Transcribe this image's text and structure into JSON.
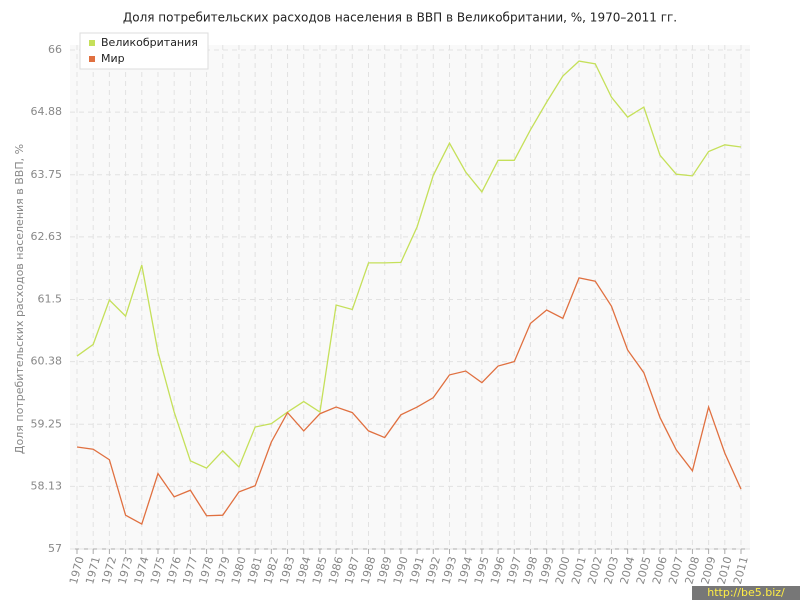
{
  "chart_data": {
    "type": "line",
    "title": "Доля потребительских расходов населения в ВВП в Великобритании, %, 1970–2011 гг.",
    "y_label": "Доля потребительских расходов населения в ВВП, %",
    "categories": [
      "1970",
      "1971",
      "1972",
      "1973",
      "1974",
      "1975",
      "1976",
      "1977",
      "1978",
      "1979",
      "1980",
      "1981",
      "1982",
      "1983",
      "1984",
      "1985",
      "1986",
      "1987",
      "1988",
      "1989",
      "1990",
      "1991",
      "1992",
      "1993",
      "1994",
      "1995",
      "1996",
      "1997",
      "1998",
      "1999",
      "2000",
      "2001",
      "2002",
      "2003",
      "2004",
      "2005",
      "2006",
      "2007",
      "2008",
      "2009",
      "2010",
      "2011"
    ],
    "series": [
      {
        "name": "Великобритания",
        "color": "#c5e05a",
        "values": [
          60.48,
          60.69,
          61.49,
          61.2,
          62.12,
          60.55,
          59.47,
          58.59,
          58.46,
          58.77,
          58.48,
          59.2,
          59.26,
          59.47,
          59.66,
          59.47,
          61.4,
          61.32,
          62.16,
          62.16,
          62.17,
          62.81,
          63.74,
          64.32,
          63.8,
          63.44,
          64.01,
          64.01,
          64.56,
          65.06,
          65.53,
          65.8,
          65.75,
          65.15,
          64.79,
          64.97,
          64.1,
          63.76,
          63.73,
          64.17,
          64.29,
          64.25
        ]
      },
      {
        "name": "Мир",
        "color": "#e07040",
        "values": [
          58.84,
          58.8,
          58.61,
          57.61,
          57.45,
          58.36,
          57.94,
          58.06,
          57.6,
          57.61,
          58.03,
          58.14,
          58.93,
          59.46,
          59.13,
          59.44,
          59.56,
          59.46,
          59.13,
          59.01,
          59.42,
          59.56,
          59.73,
          60.14,
          60.21,
          60.0,
          60.3,
          60.38,
          61.07,
          61.31,
          61.16,
          61.89,
          61.83,
          61.38,
          60.59,
          60.18,
          59.37,
          58.79,
          58.41,
          59.56,
          58.73,
          58.08
        ]
      }
    ],
    "ylim": [
      57,
      66
    ],
    "yticks": [
      57,
      58.13,
      59.25,
      60.38,
      61.5,
      62.63,
      63.75,
      64.88,
      66
    ],
    "grid": true,
    "legend": "top-left",
    "watermark": "http://be5.biz/"
  }
}
